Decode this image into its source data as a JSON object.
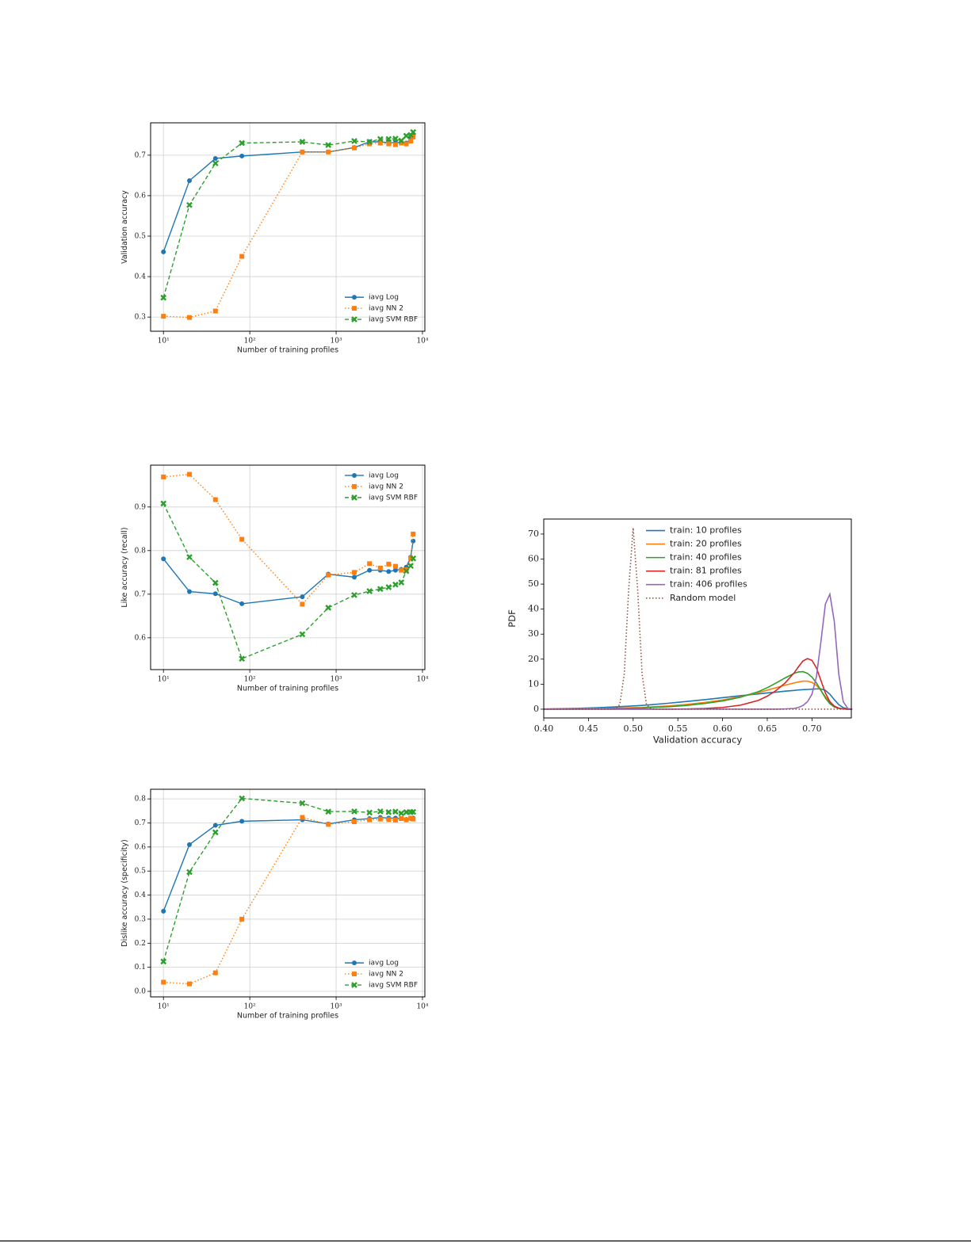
{
  "chart_data": [
    {
      "type": "line",
      "xscale": "log",
      "xlabel": "Number of training profiles",
      "ylabel": "Validation accuracy",
      "x": [
        10,
        20,
        40,
        81,
        406,
        812,
        1624,
        2436,
        3248,
        4060,
        4872,
        5684,
        6496,
        7308,
        7800
      ],
      "series": [
        {
          "name": "iavg Log",
          "color": "#1f77b4",
          "marker": "circle",
          "linestyle": "solid",
          "values": [
            0.461,
            0.637,
            0.692,
            0.698,
            0.708,
            0.708,
            0.719,
            0.733,
            0.733,
            0.731,
            0.731,
            0.731,
            0.73,
            0.74,
            0.75
          ]
        },
        {
          "name": "iavg NN 2",
          "color": "#ff7f0e",
          "marker": "square",
          "linestyle": "dotted",
          "values": [
            0.302,
            0.299,
            0.315,
            0.45,
            0.708,
            0.708,
            0.718,
            0.728,
            0.73,
            0.728,
            0.726,
            0.73,
            0.728,
            0.735,
            0.745
          ]
        },
        {
          "name": "iavg SVM RBF",
          "color": "#2ca02c",
          "marker": "cross",
          "linestyle": "dashed",
          "values": [
            0.348,
            0.577,
            0.68,
            0.73,
            0.733,
            0.725,
            0.735,
            0.733,
            0.74,
            0.74,
            0.741,
            0.736,
            0.748,
            0.75,
            0.757
          ]
        }
      ],
      "xlim": [
        7.1,
        10660
      ],
      "xticks": [
        {
          "value": 10,
          "label": "10¹"
        },
        {
          "value": 100,
          "label": "10²"
        },
        {
          "value": 1000,
          "label": "10³"
        },
        {
          "value": 10000,
          "label": "10⁴"
        }
      ],
      "ylim": [
        0.265,
        0.78
      ],
      "yticks": [
        0.3,
        0.4,
        0.5,
        0.6,
        0.7
      ],
      "grid": true,
      "legend": "lower right"
    },
    {
      "type": "line",
      "xscale": "log",
      "xlabel": "Number of training profiles",
      "ylabel": "Like accuracy (recall)",
      "x": [
        10,
        20,
        40,
        81,
        406,
        812,
        1624,
        2436,
        3248,
        4060,
        4872,
        5684,
        6496,
        7308,
        7800
      ],
      "series": [
        {
          "name": "iavg Log",
          "color": "#1f77b4",
          "marker": "circle",
          "linestyle": "solid",
          "values": [
            0.781,
            0.706,
            0.701,
            0.678,
            0.694,
            0.746,
            0.739,
            0.755,
            0.755,
            0.752,
            0.755,
            0.757,
            0.762,
            0.785,
            0.822
          ]
        },
        {
          "name": "iavg NN 2",
          "color": "#ff7f0e",
          "marker": "square",
          "linestyle": "dotted",
          "values": [
            0.969,
            0.975,
            0.917,
            0.826,
            0.677,
            0.744,
            0.75,
            0.77,
            0.76,
            0.769,
            0.764,
            0.755,
            0.756,
            0.783,
            0.838
          ]
        },
        {
          "name": "iavg SVM RBF",
          "color": "#2ca02c",
          "marker": "cross",
          "linestyle": "dashed",
          "values": [
            0.908,
            0.785,
            0.726,
            0.552,
            0.608,
            0.669,
            0.698,
            0.707,
            0.712,
            0.716,
            0.722,
            0.727,
            0.753,
            0.765,
            0.782
          ]
        }
      ],
      "xlim": [
        7.1,
        10660
      ],
      "xticks": [
        {
          "value": 10,
          "label": "10¹"
        },
        {
          "value": 100,
          "label": "10²"
        },
        {
          "value": 1000,
          "label": "10³"
        },
        {
          "value": 10000,
          "label": "10⁴"
        }
      ],
      "ylim": [
        0.527,
        0.996
      ],
      "yticks": [
        0.6,
        0.7,
        0.8,
        0.9
      ],
      "grid": true,
      "legend": "upper right"
    },
    {
      "type": "line",
      "xscale": "log",
      "xlabel": "Number of training profiles",
      "ylabel": "Dislike accuracy (specificity)",
      "x": [
        10,
        20,
        40,
        81,
        406,
        812,
        1624,
        2436,
        3248,
        4060,
        4872,
        5684,
        6496,
        7308,
        7800
      ],
      "series": [
        {
          "name": "iavg Log",
          "color": "#1f77b4",
          "marker": "circle",
          "linestyle": "solid",
          "values": [
            0.333,
            0.61,
            0.69,
            0.707,
            0.713,
            0.696,
            0.713,
            0.718,
            0.723,
            0.72,
            0.72,
            0.718,
            0.715,
            0.718,
            0.72
          ]
        },
        {
          "name": "iavg NN 2",
          "color": "#ff7f0e",
          "marker": "square",
          "linestyle": "dotted",
          "values": [
            0.038,
            0.031,
            0.077,
            0.3,
            0.723,
            0.694,
            0.705,
            0.713,
            0.716,
            0.714,
            0.712,
            0.718,
            0.713,
            0.72,
            0.716
          ]
        },
        {
          "name": "iavg SVM RBF",
          "color": "#2ca02c",
          "marker": "cross",
          "linestyle": "dashed",
          "values": [
            0.124,
            0.496,
            0.661,
            0.802,
            0.782,
            0.747,
            0.748,
            0.743,
            0.748,
            0.745,
            0.747,
            0.74,
            0.745,
            0.745,
            0.746
          ]
        }
      ],
      "xlim": [
        7.1,
        10660
      ],
      "xticks": [
        {
          "value": 10,
          "label": "10¹"
        },
        {
          "value": 100,
          "label": "10²"
        },
        {
          "value": 1000,
          "label": "10³"
        },
        {
          "value": 10000,
          "label": "10⁴"
        }
      ],
      "ylim": [
        -0.023,
        0.84
      ],
      "yticks": [
        {
          "value": 0,
          "label": "0.0"
        },
        0.1,
        0.2,
        0.3,
        0.4,
        0.5,
        0.6,
        0.7,
        0.8
      ],
      "grid": true,
      "legend": "lower right"
    },
    {
      "type": "line",
      "xscale": "linear",
      "xlabel": "Validation accuracy",
      "ylabel": "PDF",
      "x": [
        0.4,
        0.42,
        0.44,
        0.46,
        0.48,
        0.485,
        0.49,
        0.495,
        0.5,
        0.505,
        0.51,
        0.515,
        0.52,
        0.54,
        0.56,
        0.58,
        0.6,
        0.62,
        0.64,
        0.65,
        0.66,
        0.67,
        0.68,
        0.685,
        0.69,
        0.695,
        0.7,
        0.705,
        0.71,
        0.715,
        0.72,
        0.725,
        0.73,
        0.735,
        0.74,
        0.745
      ],
      "series": [
        {
          "name": "train: 10 profiles",
          "color": "#1f77b4",
          "linestyle": "solid",
          "values": [
            0.1,
            0.2,
            0.35,
            0.6,
            0.9,
            1.0,
            1.1,
            1.2,
            1.3,
            1.4,
            1.5,
            1.65,
            1.8,
            2.4,
            3.1,
            3.8,
            4.6,
            5.4,
            6.1,
            6.5,
            6.8,
            7.2,
            7.5,
            7.7,
            7.8,
            7.9,
            8,
            8.1,
            8.1,
            7.5,
            6,
            3.8,
            1.8,
            0.6,
            0.1,
            0
          ]
        },
        {
          "name": "train: 20 profiles",
          "color": "#ff7f0e",
          "linestyle": "solid",
          "values": [
            0.05,
            0.1,
            0.15,
            0.25,
            0.4,
            0.45,
            0.5,
            0.55,
            0.6,
            0.65,
            0.7,
            0.8,
            0.9,
            1.3,
            1.9,
            2.7,
            3.7,
            5,
            6.6,
            7.6,
            8.6,
            9.6,
            10.5,
            10.9,
            11.2,
            11.2,
            10.7,
            9.5,
            7.5,
            5,
            2.8,
            1.2,
            0.4,
            0.1,
            0,
            0
          ]
        },
        {
          "name": "train: 40 profiles",
          "color": "#2ca02c",
          "linestyle": "solid",
          "values": [
            0,
            0,
            0.05,
            0.1,
            0.2,
            0.25,
            0.3,
            0.35,
            0.4,
            0.45,
            0.5,
            0.6,
            0.7,
            1.0,
            1.5,
            2.3,
            3.3,
            4.8,
            7,
            8.6,
            10.5,
            12.5,
            14.3,
            14.9,
            15,
            14.3,
            12.8,
            10.5,
            7.5,
            4.5,
            2.2,
            0.9,
            0.3,
            0.1,
            0,
            0
          ]
        },
        {
          "name": "train: 81 profiles",
          "color": "#d62728",
          "linestyle": "solid",
          "values": [
            0,
            0,
            0,
            0,
            0,
            0,
            0,
            0,
            0,
            0,
            0,
            0,
            0,
            0,
            0.1,
            0.3,
            0.7,
            1.6,
            3.5,
            5.2,
            7.5,
            10.5,
            14.5,
            17,
            19.3,
            20.2,
            19.5,
            16.5,
            11.5,
            6.5,
            3,
            1.2,
            0.4,
            0.1,
            0,
            0
          ]
        },
        {
          "name": "train: 406 profiles",
          "color": "#9467bd",
          "linestyle": "solid",
          "values": [
            0,
            0,
            0,
            0,
            0,
            0,
            0,
            0,
            0,
            0,
            0,
            0,
            0,
            0,
            0,
            0,
            0,
            0,
            0,
            0,
            0,
            0.1,
            0.3,
            0.7,
            1.5,
            3,
            6,
            13,
            27,
            42,
            46,
            35,
            14,
            3,
            0.3,
            0
          ]
        },
        {
          "name": "Random model",
          "color": "#8c564b",
          "linestyle": "dotted",
          "values": [
            0,
            0,
            0,
            0,
            0.1,
            1.8,
            13.9,
            48,
            72.5,
            48,
            13.9,
            1.8,
            0.1,
            0,
            0,
            0,
            0,
            0,
            0,
            0,
            0,
            0,
            0,
            0,
            0,
            0,
            0,
            0,
            0,
            0,
            0,
            0,
            0,
            0,
            0,
            0
          ]
        }
      ],
      "xlim": [
        0.4,
        0.744
      ],
      "xticks": [
        {
          "value": 0.4,
          "label": "0.40"
        },
        0.45,
        {
          "value": 0.5,
          "label": "0.50"
        },
        0.55,
        {
          "value": 0.6,
          "label": "0.60"
        },
        0.65,
        {
          "value": 0.7,
          "label": "0.70"
        }
      ],
      "ylim": [
        -3.5,
        76
      ],
      "yticks": [
        0,
        10,
        20,
        30,
        40,
        50,
        60,
        70
      ],
      "grid": false,
      "legend": "upper center"
    }
  ]
}
